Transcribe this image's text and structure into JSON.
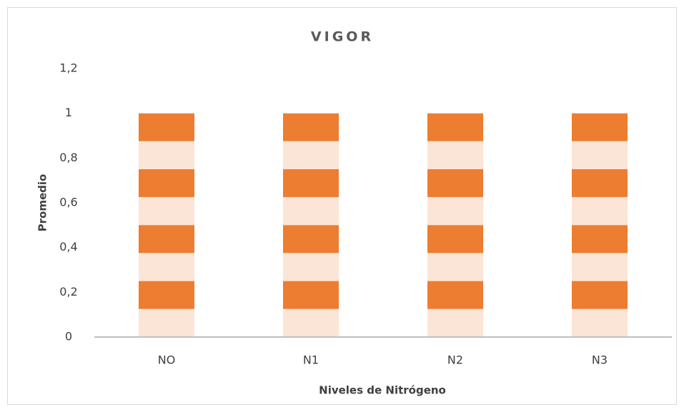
{
  "chart_data": {
    "type": "bar",
    "title": "VIGOR",
    "x_label": "Niveles de Nitrógeno",
    "y_label": "Promedio",
    "categories": [
      "NO",
      "N1",
      "N2",
      "N3"
    ],
    "values": [
      1,
      1,
      1,
      1
    ],
    "color": "#ed7d31",
    "pattern_color": "#fbe5d6",
    "ylim": [
      0,
      1.2
    ],
    "yticks": [
      0,
      {
        "value": 0.2,
        "label": "0,2"
      },
      {
        "value": 0.4,
        "label": "0,4"
      },
      {
        "value": 0.6,
        "label": "0,6"
      },
      {
        "value": 0.8,
        "label": "0,8"
      },
      1,
      {
        "value": 1.2,
        "label": "1,2"
      }
    ],
    "grid": false
  }
}
